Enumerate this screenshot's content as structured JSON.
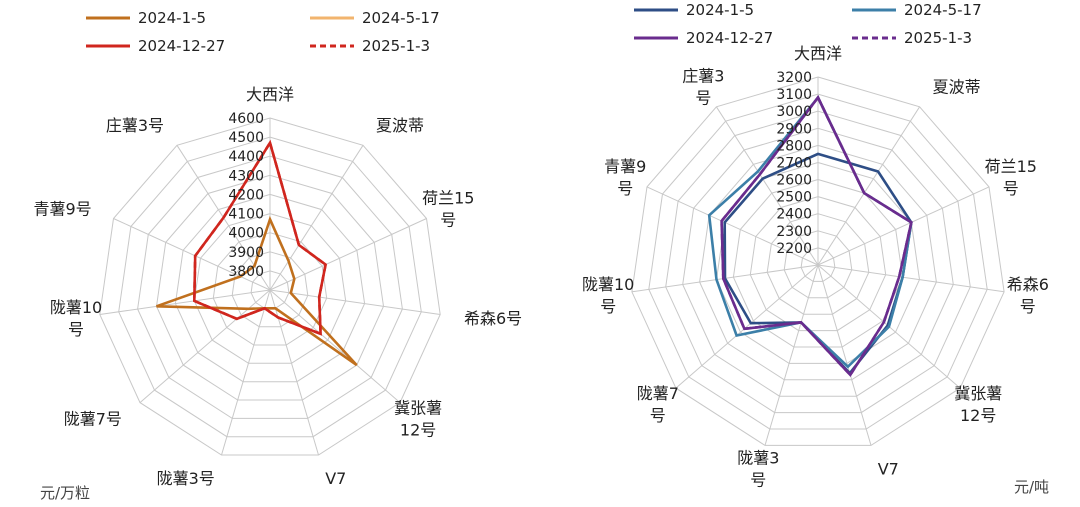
{
  "chart_data": [
    {
      "type": "radar",
      "unit": "元/万粒",
      "categories": [
        "大西洋",
        "夏波蒂",
        "荷兰15号",
        "希森6号",
        "冀张薯12号",
        "V7",
        "陇薯3号",
        "陇薯7号",
        "陇薯10号",
        "青薯9号",
        "庄薯3号"
      ],
      "category_lines": [
        [
          "大西洋"
        ],
        [
          "夏波蒂"
        ],
        [
          "荷兰15",
          "号"
        ],
        [
          "希森6号"
        ],
        [
          "冀张薯",
          "12号"
        ],
        [
          "V7"
        ],
        [
          "陇薯3号"
        ],
        [
          "陇薯7号"
        ],
        [
          "陇薯10",
          "号"
        ],
        [
          "青薯9号"
        ],
        [
          "庄薯3号"
        ]
      ],
      "rlim": [
        3700,
        4600
      ],
      "ticks": [
        3800,
        3900,
        4000,
        4100,
        4200,
        4300,
        4400,
        4500,
        4600
      ],
      "grid": true,
      "legend_position": "top",
      "series": [
        {
          "name": "2024-1-5",
          "color": "#C0701E",
          "dash": false,
          "values": [
            4070,
            3880,
            3840,
            3810,
            4300,
            3800,
            3800,
            3850,
            4300,
            3870,
            3850
          ]
        },
        {
          "name": "2024-5-17",
          "color": "#F2B46E",
          "dash": false,
          "values": [
            null,
            null,
            null,
            null,
            null,
            null,
            null,
            null,
            null,
            null,
            null
          ]
        },
        {
          "name": "2024-12-27",
          "color": "#D0261E",
          "dash": false,
          "values": [
            4470,
            3980,
            4020,
            3960,
            4050,
            3850,
            3800,
            3930,
            4100,
            4130,
            4150
          ]
        },
        {
          "name": "2025-1-3",
          "color": "#D0261E",
          "dash": true,
          "values": [
            4470,
            3980,
            4020,
            3960,
            4050,
            3850,
            3800,
            3930,
            4100,
            4130,
            4150
          ]
        }
      ]
    },
    {
      "type": "radar",
      "unit": "元/吨",
      "categories": [
        "大西洋",
        "夏波蒂",
        "荷兰15号",
        "希森6号",
        "冀张薯12号",
        "V7",
        "陇薯3号",
        "陇薯7号",
        "陇薯10号",
        "青薯9号",
        "庄薯3号"
      ],
      "category_lines": [
        [
          "大西洋"
        ],
        [
          "夏波蒂"
        ],
        [
          "荷兰15",
          "号"
        ],
        [
          "希森6",
          "号"
        ],
        [
          "冀张薯",
          "12号"
        ],
        [
          "V7"
        ],
        [
          "陇薯3",
          "号"
        ],
        [
          "陇薯7",
          "号"
        ],
        [
          "陇薯10",
          "号"
        ],
        [
          "青薯9",
          "号"
        ],
        [
          "庄薯3",
          "号"
        ]
      ],
      "rlim": [
        2100,
        3200
      ],
      "ticks": [
        2200,
        2300,
        2400,
        2500,
        2600,
        2700,
        2800,
        2900,
        3000,
        3100,
        3200
      ],
      "grid": true,
      "legend_position": "top",
      "series": [
        {
          "name": "2024-1-5",
          "color": "#2E4E86",
          "dash": false,
          "values": [
            2750,
            2750,
            2700,
            2600,
            2640,
            2760,
            2450,
            2620,
            2650,
            2700,
            2700
          ]
        },
        {
          "name": "2024-5-17",
          "color": "#3C7FA8",
          "dash": false,
          "values": [
            3080,
            2600,
            2700,
            2600,
            2650,
            2720,
            2450,
            2730,
            2700,
            2800,
            2750
          ]
        },
        {
          "name": "2024-12-27",
          "color": "#6A2C8E",
          "dash": false,
          "values": [
            3080,
            2600,
            2700,
            2580,
            2610,
            2770,
            2450,
            2670,
            2660,
            2720,
            2730
          ]
        },
        {
          "name": "2025-1-3",
          "color": "#6A2C8E",
          "dash": true,
          "values": [
            3080,
            2600,
            2700,
            2580,
            2610,
            2770,
            2450,
            2670,
            2660,
            2720,
            2730
          ]
        }
      ]
    }
  ]
}
